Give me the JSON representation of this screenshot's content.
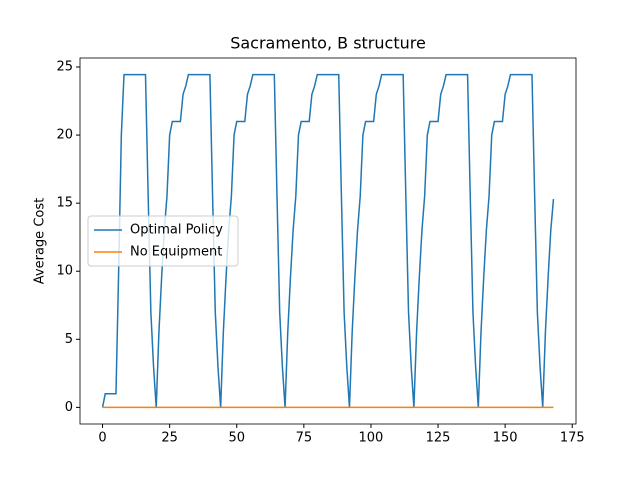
{
  "chart_data": {
    "type": "line",
    "title": "Sacramento, B structure",
    "y_label": "Average Cost",
    "x": [
      0,
      1,
      2,
      3,
      4,
      5,
      6,
      7,
      8,
      9,
      10,
      11,
      12,
      13,
      14,
      15,
      16,
      17,
      18,
      19,
      20,
      21,
      22,
      23,
      24,
      25,
      26,
      27,
      28,
      29,
      30,
      31,
      32,
      33,
      34,
      35,
      36,
      37,
      38,
      39,
      40,
      41,
      42,
      43,
      44,
      45,
      46,
      47,
      48,
      49,
      50,
      51,
      52,
      53,
      54,
      55,
      56,
      57,
      58,
      59,
      60,
      61,
      62,
      63,
      64,
      65,
      66,
      67,
      68,
      69,
      70,
      71,
      72,
      73,
      74,
      75,
      76,
      77,
      78,
      79,
      80,
      81,
      82,
      83,
      84,
      85,
      86,
      87,
      88,
      89,
      90,
      91,
      92,
      93,
      94,
      95,
      96,
      97,
      98,
      99,
      100,
      101,
      102,
      103,
      104,
      105,
      106,
      107,
      108,
      109,
      110,
      111,
      112,
      113,
      114,
      115,
      116,
      117,
      118,
      119,
      120,
      121,
      122,
      123,
      124,
      125,
      126,
      127,
      128,
      129,
      130,
      131,
      132,
      133,
      134,
      135,
      136,
      137,
      138,
      139,
      140,
      141,
      142,
      143,
      144,
      145,
      146,
      147,
      148,
      149,
      150,
      151,
      152,
      153,
      154,
      155,
      156,
      157,
      158,
      159,
      160,
      161,
      162,
      163,
      164,
      165,
      166,
      167,
      168
    ],
    "series": [
      {
        "name": "Optimal Policy",
        "color": "#1f77b4",
        "values": [
          0,
          1,
          1,
          1,
          1,
          1,
          10,
          20,
          24.44,
          24.44,
          24.44,
          24.44,
          24.44,
          24.44,
          24.44,
          24.44,
          24.44,
          15.5,
          7,
          3,
          0,
          5.5,
          9.5,
          13,
          15.5,
          20,
          21,
          21,
          21,
          21,
          23,
          23.6,
          24.44,
          24.44,
          24.44,
          24.44,
          24.44,
          24.44,
          24.44,
          24.44,
          24.44,
          15.5,
          7,
          3,
          0,
          5.5,
          9.5,
          13,
          15.5,
          20,
          21,
          21,
          21,
          21,
          23,
          23.6,
          24.44,
          24.44,
          24.44,
          24.44,
          24.44,
          24.44,
          24.44,
          24.44,
          24.44,
          15.5,
          7,
          3,
          0,
          5.5,
          9.5,
          13,
          15.5,
          20,
          21,
          21,
          21,
          21,
          23,
          23.6,
          24.44,
          24.44,
          24.44,
          24.44,
          24.44,
          24.44,
          24.44,
          24.44,
          24.44,
          15.5,
          7,
          3,
          0,
          5.5,
          9.5,
          13,
          15.5,
          20,
          21,
          21,
          21,
          21,
          23,
          23.6,
          24.44,
          24.44,
          24.44,
          24.44,
          24.44,
          24.44,
          24.44,
          24.44,
          24.44,
          15.5,
          7,
          3,
          0,
          5.5,
          9.5,
          13,
          15.5,
          20,
          21,
          21,
          21,
          21,
          23,
          23.6,
          24.44,
          24.44,
          24.44,
          24.44,
          24.44,
          24.44,
          24.44,
          24.44,
          24.44,
          15.5,
          7,
          3,
          0,
          5.5,
          9.5,
          13,
          15.5,
          20,
          21,
          21,
          21,
          21,
          23,
          23.6,
          24.44,
          24.44,
          24.44,
          24.44,
          24.44,
          24.44,
          24.44,
          24.44,
          24.44,
          15.5,
          7,
          3,
          0,
          5.5,
          9.5,
          13,
          15.3
        ]
      },
      {
        "name": "No Equipment",
        "color": "#ff7f0e",
        "values": [
          0,
          0,
          0,
          0,
          0,
          0,
          0,
          0,
          0,
          0,
          0,
          0,
          0,
          0,
          0,
          0,
          0,
          0,
          0,
          0,
          0,
          0,
          0,
          0,
          0,
          0,
          0,
          0,
          0,
          0,
          0,
          0,
          0,
          0,
          0,
          0,
          0,
          0,
          0,
          0,
          0,
          0,
          0,
          0,
          0,
          0,
          0,
          0,
          0,
          0,
          0,
          0,
          0,
          0,
          0,
          0,
          0,
          0,
          0,
          0,
          0,
          0,
          0,
          0,
          0,
          0,
          0,
          0,
          0,
          0,
          0,
          0,
          0,
          0,
          0,
          0,
          0,
          0,
          0,
          0,
          0,
          0,
          0,
          0,
          0,
          0,
          0,
          0,
          0,
          0,
          0,
          0,
          0,
          0,
          0,
          0,
          0,
          0,
          0,
          0,
          0,
          0,
          0,
          0,
          0,
          0,
          0,
          0,
          0,
          0,
          0,
          0,
          0,
          0,
          0,
          0,
          0,
          0,
          0,
          0,
          0,
          0,
          0,
          0,
          0,
          0,
          0,
          0,
          0,
          0,
          0,
          0,
          0,
          0,
          0,
          0,
          0,
          0,
          0,
          0,
          0,
          0,
          0,
          0,
          0,
          0,
          0,
          0,
          0,
          0,
          0,
          0,
          0,
          0,
          0,
          0,
          0,
          0,
          0,
          0,
          0,
          0,
          0,
          0,
          0,
          0,
          0,
          0,
          0
        ]
      }
    ],
    "xlim": [
      -8.4,
      176.4
    ],
    "ylim": [
      -1.22,
      25.66
    ],
    "xticks": [
      0,
      25,
      50,
      75,
      100,
      125,
      150,
      175
    ],
    "yticks": [
      0,
      5,
      10,
      15,
      20,
      25
    ],
    "legend": "center left"
  }
}
